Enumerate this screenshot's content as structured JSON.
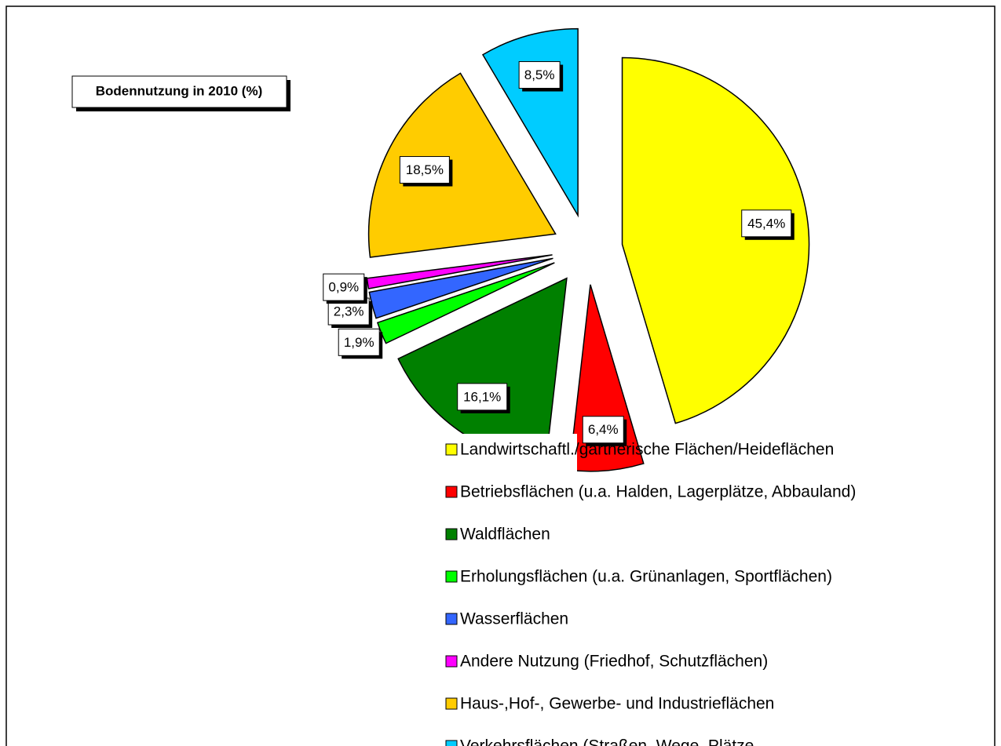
{
  "chart_data": {
    "type": "pie",
    "title": "Bodennutzung in 2010 (%)",
    "categories": [
      "Landwirtschaftl./gärtnerische Flächen/Heideflächen",
      "Betriebsflächen (u.a. Halden, Lagerplätze, Abbauland)",
      "Waldflächen",
      "Erholungsflächen (u.a. Grünanlagen, Sportflächen)",
      "Wasserflächen",
      "Andere Nutzung (Friedhof, Schutzflächen)",
      "Haus-,Hof-, Gewerbe- und Industrieflächen",
      "Verkehrsflächen (Straßen, Wege, Plätze,"
    ],
    "values": [
      45.4,
      6.4,
      16.1,
      1.9,
      2.3,
      0.9,
      18.5,
      8.5
    ],
    "value_labels": [
      "45,4%",
      "6,4%",
      "16,1%",
      "1,9%",
      "2,3%",
      "0,9%",
      "18,5%",
      "8,5%"
    ],
    "colors": [
      "#ffff00",
      "#ff0000",
      "#008000",
      "#00ff00",
      "#3366ff",
      "#ff00ff",
      "#ffcc00",
      "#00ccff"
    ]
  }
}
